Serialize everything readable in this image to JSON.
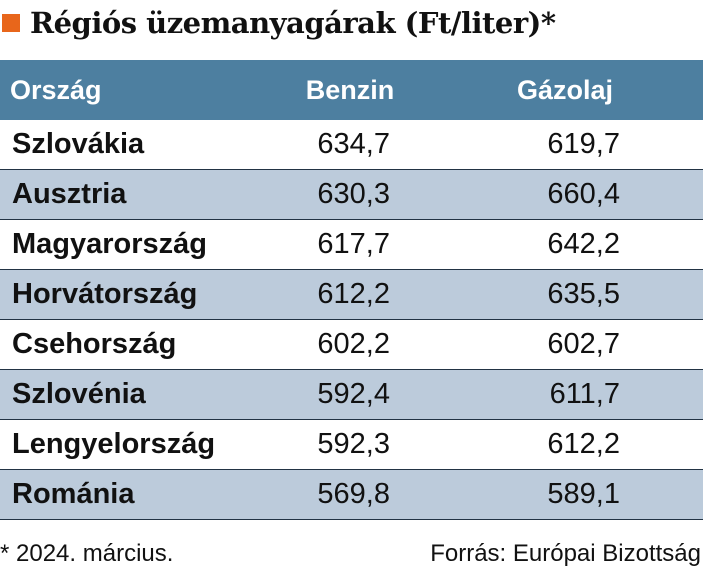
{
  "title": "Régiós üzemanyagárak (Ft/liter)*",
  "colors": {
    "title_marker": "#e8661b",
    "header_background": "#4d7fa0",
    "alt_row_background": "#bccbdb"
  },
  "chart_data": {
    "type": "table",
    "title": "Régiós üzemanyagárak (Ft/liter)*",
    "columns": [
      "Ország",
      "Benzin",
      "Gázolaj"
    ],
    "rows": [
      {
        "country": "Szlovákia",
        "benzin": "634,7",
        "gazolaj": "619,7"
      },
      {
        "country": "Ausztria",
        "benzin": "630,3",
        "gazolaj": "660,4"
      },
      {
        "country": "Magyarország",
        "benzin": "617,7",
        "gazolaj": "642,2"
      },
      {
        "country": "Horvátország",
        "benzin": "612,2",
        "gazolaj": "635,5"
      },
      {
        "country": "Csehország",
        "benzin": "602,2",
        "gazolaj": "602,7"
      },
      {
        "country": "Szlovénia",
        "benzin": "592,4",
        "gazolaj": "611,7"
      },
      {
        "country": "Lengyelország",
        "benzin": "592,3",
        "gazolaj": "612,2"
      },
      {
        "country": "Románia",
        "benzin": "569,8",
        "gazolaj": "589,1"
      }
    ]
  },
  "footer": {
    "footnote": "* 2024. március.",
    "source": "Forrás: Európai Bizottság"
  }
}
